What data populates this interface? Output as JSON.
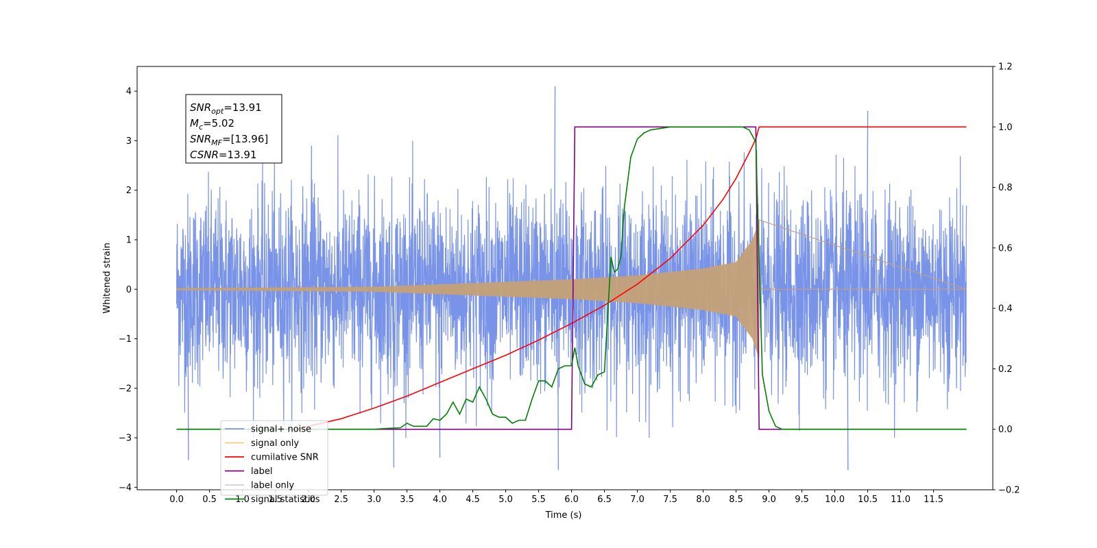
{
  "chart_data": {
    "type": "line",
    "title": "",
    "xlabel": "Time (s)",
    "ylabel": "Whitened strain",
    "ylabel_right": "",
    "xlim": [
      -0.6,
      12.4
    ],
    "ylim": [
      -4.05,
      4.5
    ],
    "ylim_right": [
      -0.2,
      1.2
    ],
    "x_ticks": [
      "0.0",
      "0.5",
      "1.0",
      "1.5",
      "2.0",
      "2.5",
      "3.0",
      "3.5",
      "4.0",
      "4.5",
      "5.0",
      "5.5",
      "6.0",
      "6.5",
      "7.0",
      "7.5",
      "8.0",
      "8.5",
      "9.0",
      "9.5",
      "10.0",
      "10.5",
      "11.0",
      "11.5"
    ],
    "y_ticks": [
      "4",
      "3",
      "2",
      "1",
      "0",
      "−1",
      "−2",
      "−3",
      "−4"
    ],
    "y_ticks_right": [
      "1.2",
      "1.0",
      "0.8",
      "0.6",
      "0.4",
      "0.2",
      "0.0",
      "−0.2"
    ],
    "grid": false,
    "legend_position": "bottom-left",
    "annotation": {
      "lines": [
        {
          "base": "SNR",
          "sub": "opt",
          "text": "=13.91"
        },
        {
          "base": "M",
          "sub": "c",
          "text": "=5.02"
        },
        {
          "base": "SNR",
          "sub": "MF",
          "text": "=[13.96]"
        },
        {
          "base": "CSNR",
          "sub": "",
          "text": "=13.91"
        }
      ]
    },
    "legend": [
      {
        "label": "signal+ noise",
        "color": "#7893e8"
      },
      {
        "label": "signal only",
        "color": "#ffc87a"
      },
      {
        "label": "cumilative SNR",
        "color": "#ff0000"
      },
      {
        "label": "label",
        "color": "#800080"
      },
      {
        "label": "label only",
        "color": "#d0d0d0"
      },
      {
        "label": "signal statistics",
        "color": "#008000"
      }
    ],
    "series": [
      {
        "name": "signal+ noise",
        "axis": "left",
        "color": "#7893e8",
        "x_range": [
          0.0,
          12.0
        ],
        "noise_std": 0.95,
        "peaks": [
          {
            "x": 0.18,
            "y": -3.45
          },
          {
            "x": 3.3,
            "y": -3.6
          },
          {
            "x": 5.75,
            "y": 4.1
          },
          {
            "x": 5.8,
            "y": -3.65
          },
          {
            "x": 10.5,
            "y": 3.6
          },
          {
            "x": 10.2,
            "y": -3.65
          },
          {
            "x": 4.0,
            "y": -3.4
          },
          {
            "x": 2.05,
            "y": 2.9
          }
        ]
      },
      {
        "name": "signal only",
        "axis": "left",
        "color": "#c4a077",
        "x_start": 0.0,
        "x_merger": 8.85,
        "x_end": 12.0,
        "amplitude_at": [
          [
            0.0,
            0.02
          ],
          [
            3.0,
            0.05
          ],
          [
            6.0,
            0.2
          ],
          [
            7.0,
            0.28
          ],
          [
            8.0,
            0.42
          ],
          [
            8.5,
            0.55
          ],
          [
            8.75,
            1.0
          ],
          [
            8.85,
            1.4
          ]
        ]
      },
      {
        "name": "cumilative SNR",
        "axis": "right",
        "color": "#ff0000",
        "x": [
          1.8,
          2.5,
          3.0,
          3.5,
          4.0,
          4.5,
          5.0,
          5.5,
          6.0,
          6.5,
          7.0,
          7.5,
          8.0,
          8.3,
          8.5,
          8.7,
          8.8,
          8.85,
          9.0,
          12.0
        ],
        "y": [
          0.0,
          0.035,
          0.07,
          0.11,
          0.155,
          0.2,
          0.245,
          0.295,
          0.35,
          0.41,
          0.48,
          0.565,
          0.675,
          0.76,
          0.83,
          0.915,
          0.96,
          1.0,
          1.0,
          1.0
        ]
      },
      {
        "name": "label",
        "axis": "right",
        "color": "#800080",
        "x": [
          0.0,
          6.0,
          6.05,
          8.8,
          8.85,
          12.0
        ],
        "y": [
          0.0,
          0.0,
          1.0,
          1.0,
          0.0,
          0.0
        ]
      },
      {
        "name": "signal statistics",
        "axis": "right",
        "color": "#008000",
        "x": [
          0.0,
          3.0,
          3.2,
          3.4,
          3.5,
          3.6,
          3.8,
          3.9,
          4.0,
          4.1,
          4.2,
          4.3,
          4.4,
          4.5,
          4.6,
          4.7,
          4.8,
          4.9,
          5.0,
          5.1,
          5.2,
          5.3,
          5.4,
          5.5,
          5.6,
          5.7,
          5.8,
          5.9,
          6.0,
          6.05,
          6.1,
          6.2,
          6.3,
          6.4,
          6.5,
          6.6,
          6.65,
          6.7,
          6.75,
          6.8,
          6.9,
          7.0,
          7.1,
          7.2,
          7.5,
          8.0,
          8.6,
          8.7,
          8.8,
          8.85,
          8.9,
          9.0,
          9.1,
          9.2,
          12.0
        ],
        "y": [
          0.0,
          0.0,
          0.003,
          0.005,
          0.02,
          0.01,
          0.01,
          0.035,
          0.03,
          0.05,
          0.09,
          0.05,
          0.1,
          0.09,
          0.14,
          0.1,
          0.05,
          0.04,
          0.04,
          0.02,
          0.03,
          0.03,
          0.1,
          0.16,
          0.16,
          0.14,
          0.2,
          0.21,
          0.21,
          0.27,
          0.21,
          0.15,
          0.14,
          0.18,
          0.19,
          0.57,
          0.52,
          0.53,
          0.57,
          0.73,
          0.9,
          0.96,
          0.98,
          0.99,
          1.0,
          1.0,
          1.0,
          0.99,
          0.95,
          0.55,
          0.18,
          0.06,
          0.01,
          0.0,
          0.0
        ]
      }
    ]
  }
}
